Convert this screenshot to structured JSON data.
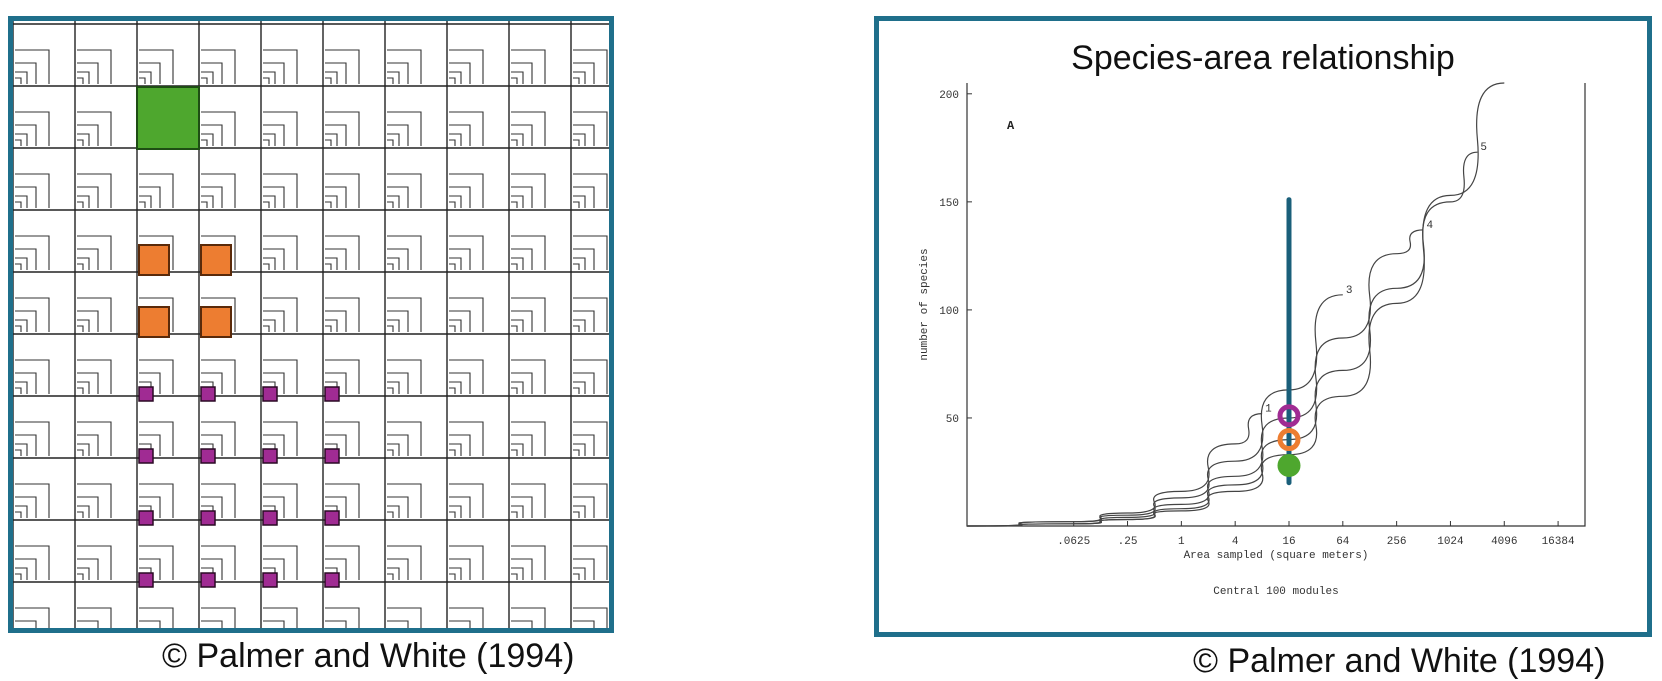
{
  "left_panel": {
    "credit": "© Palmer and White (1994)",
    "grid": {
      "rows": 9,
      "cols": 9
    },
    "highlight_colors": {
      "large": "#4ea72e",
      "medium": "#ed7d31",
      "small": "#a02b93"
    }
  },
  "right_panel": {
    "credit": "© Palmer and White (1994)",
    "title": "Species-area relationship",
    "panel_letter": "A",
    "footer": "Central 100 modules",
    "marker_colors": {
      "vertical_line": "#1a5f7a",
      "purple": "#a02b93",
      "orange": "#ed7d31",
      "green": "#4ea72e"
    }
  },
  "chart_data": {
    "type": "line",
    "title": "Species-area relationship",
    "xlabel": "Area sampled (square meters)",
    "ylabel": "number of species",
    "x_scale": "log2",
    "x_ticks": [
      ".0625",
      ".25",
      "1",
      "4",
      "16",
      "64",
      "256",
      "1024",
      "4096",
      "16384"
    ],
    "x_tick_values": [
      0.0625,
      0.25,
      1,
      4,
      16,
      64,
      256,
      1024,
      4096,
      16384
    ],
    "y_ticks": [
      "50",
      "100",
      "150",
      "200"
    ],
    "y_tick_values": [
      50,
      100,
      150,
      200
    ],
    "xlim": [
      0.004,
      32768
    ],
    "ylim": [
      0,
      205
    ],
    "series": [
      {
        "name": "1",
        "x": [
          0.004,
          0.0625,
          0.25,
          1,
          4,
          8
        ],
        "y": [
          0,
          2,
          6,
          16,
          38,
          52
        ]
      },
      {
        "name": "3",
        "x": [
          0.004,
          0.0625,
          0.25,
          1,
          4,
          16,
          64
        ],
        "y": [
          0,
          2,
          5,
          13,
          30,
          63,
          107
        ]
      },
      {
        "name": "4",
        "x": [
          0.004,
          0.0625,
          0.25,
          1,
          4,
          16,
          64,
          256,
          512
        ],
        "y": [
          0,
          1,
          4,
          10,
          23,
          50,
          87,
          126,
          137
        ]
      },
      {
        "name": "5",
        "x": [
          0.004,
          0.0625,
          0.25,
          1,
          4,
          16,
          64,
          256,
          1024,
          2048
        ],
        "y": [
          0,
          1,
          3,
          8,
          19,
          40,
          72,
          110,
          150,
          173
        ]
      },
      {
        "name": "",
        "x": [
          0.0625,
          0.25,
          1,
          4,
          16,
          64,
          256,
          1024,
          4096
        ],
        "y": [
          1,
          3,
          7,
          16,
          33,
          60,
          103,
          153,
          205
        ]
      }
    ],
    "annotations": [
      {
        "type": "vline",
        "x": 16,
        "y_range": [
          20,
          151
        ]
      },
      {
        "type": "circle",
        "x": 16,
        "y": 51,
        "color": "#a02b93"
      },
      {
        "type": "circle",
        "x": 16,
        "y": 40,
        "color": "#ed7d31"
      },
      {
        "type": "circle",
        "x": 16,
        "y": 28,
        "color": "#4ea72e"
      }
    ],
    "grid": false
  }
}
